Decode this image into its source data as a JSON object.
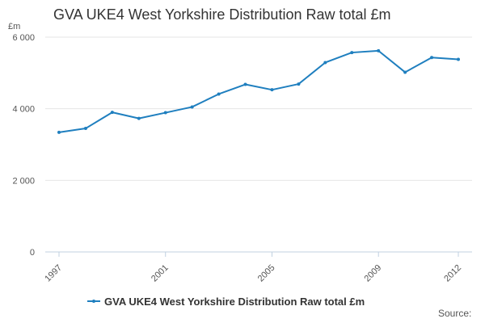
{
  "colors": {
    "series": "#1f7fbf",
    "grid": "#e6e6e6",
    "axis": "#c0d0e0",
    "tick_text": "#555555",
    "title_text": "#333333"
  },
  "source_label": "Source:",
  "chart_data": {
    "type": "line",
    "title": "GVA UKE4 West Yorkshire Distribution Raw total £m",
    "ylabel": "£m",
    "xlabel": "",
    "x": [
      1997,
      1998,
      1999,
      2000,
      2001,
      2002,
      2003,
      2004,
      2005,
      2006,
      2007,
      2008,
      2009,
      2010,
      2011,
      2012
    ],
    "x_ticks": [
      "1997",
      "2001",
      "2005",
      "2009",
      "2012"
    ],
    "y_ticks": [
      "0",
      "2 000",
      "4 000",
      "6 000"
    ],
    "ylim": [
      0,
      6000
    ],
    "grid": true,
    "legend_position": "bottom",
    "series": [
      {
        "name": "GVA UKE4 West Yorkshire Distribution Raw total £m",
        "values": [
          3340,
          3450,
          3900,
          3730,
          3890,
          4050,
          4410,
          4680,
          4530,
          4690,
          5290,
          5570,
          5620,
          5020,
          5430,
          5380
        ]
      }
    ]
  }
}
